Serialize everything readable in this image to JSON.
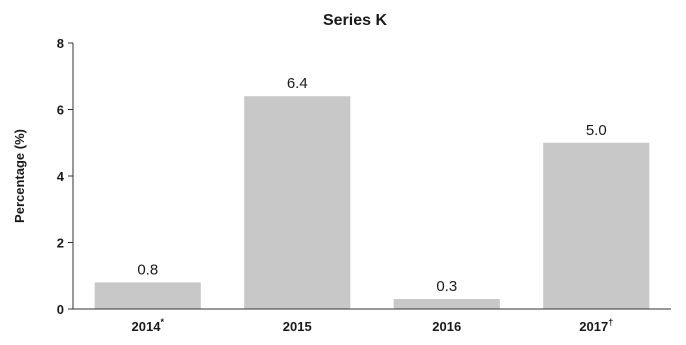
{
  "chart_data": {
    "type": "bar",
    "title": "Series K",
    "ylabel": "Percentage (%)",
    "xlabel": "",
    "categories": [
      {
        "label": "2014",
        "marker": "*"
      },
      {
        "label": "2015",
        "marker": ""
      },
      {
        "label": "2016",
        "marker": ""
      },
      {
        "label": "2017",
        "marker": "†"
      }
    ],
    "values": [
      0.8,
      6.4,
      0.3,
      5.0
    ],
    "data_labels": [
      "0.8",
      "6.4",
      "0.3",
      "5.0"
    ],
    "ylim": [
      0,
      8
    ],
    "yticks": [
      0,
      2,
      4,
      6,
      8
    ],
    "grid": false,
    "bar_color": "#c8c8c8"
  }
}
